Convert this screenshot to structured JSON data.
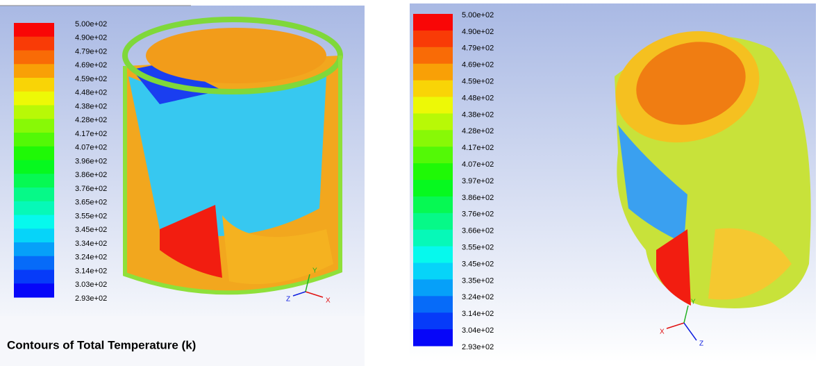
{
  "panels": [
    {
      "colorbar": {
        "labels": [
          "5.00e+02",
          "4.90e+02",
          "4.79e+02",
          "4.69e+02",
          "4.59e+02",
          "4.48e+02",
          "4.38e+02",
          "4.28e+02",
          "4.17e+02",
          "4.07e+02",
          "3.96e+02",
          "3.86e+02",
          "3.76e+02",
          "3.65e+02",
          "3.55e+02",
          "3.45e+02",
          "3.34e+02",
          "3.24e+02",
          "3.14e+02",
          "3.03e+02",
          "2.93e+02"
        ]
      },
      "axes": {
        "x": "X",
        "y": "Y",
        "z": "Z"
      },
      "title": "Contours of Total Temperature (k)"
    },
    {
      "colorbar": {
        "labels": [
          "5.00e+02",
          "4.90e+02",
          "4.79e+02",
          "4.69e+02",
          "4.59e+02",
          "4.48e+02",
          "4.38e+02",
          "4.28e+02",
          "4.17e+02",
          "4.07e+02",
          "3.97e+02",
          "3.86e+02",
          "3.76e+02",
          "3.66e+02",
          "3.55e+02",
          "3.45e+02",
          "3.35e+02",
          "3.24e+02",
          "3.14e+02",
          "3.04e+02",
          "2.93e+02"
        ]
      },
      "axes": {
        "x": "X",
        "y": "Y",
        "z": "Z"
      }
    }
  ]
}
